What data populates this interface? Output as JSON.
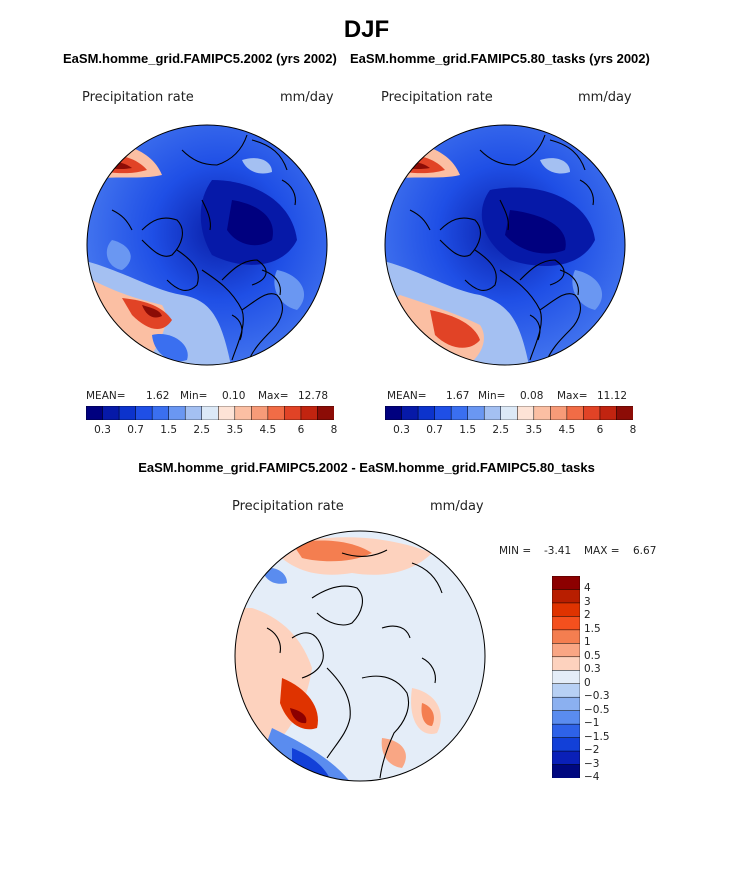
{
  "main_title": "DJF",
  "panels": [
    {
      "title": "EaSM.homme_grid.FAMIPC5.2002 (yrs 2002)",
      "variable": "Precipitation rate",
      "units": "mm/day",
      "mean_label": "MEAN=",
      "mean": "1.62",
      "min_label": "Min=",
      "min": "0.10",
      "max_label": "Max=",
      "max": "12.78"
    },
    {
      "title": "EaSM.homme_grid.FAMIPC5.80_tasks (yrs 2002)",
      "variable": "Precipitation rate",
      "units": "mm/day",
      "mean_label": "MEAN=",
      "mean": "1.67",
      "min_label": "Min=",
      "min": "0.08",
      "max_label": "Max=",
      "max": "11.12"
    }
  ],
  "diff_panel": {
    "title": "EaSM.homme_grid.FAMIPC5.2002 - EaSM.homme_grid.FAMIPC5.80_tasks",
    "variable": "Precipitation rate",
    "units": "mm/day",
    "min_label": "MIN =",
    "min": "-3.41",
    "max_label": "MAX =",
    "max": "6.67"
  },
  "chart_data": [
    {
      "type": "heatmap",
      "title": "EaSM.homme_grid.FAMIPC5.2002 (yrs 2002)",
      "projection": "north polar stereographic",
      "units": "mm/day",
      "stats": {
        "mean": 1.62,
        "min": 0.1,
        "max": 12.78
      },
      "contour_levels": [
        0.3,
        0.5,
        0.7,
        1,
        1.5,
        2,
        2.5,
        3,
        3.5,
        4,
        4.5,
        5,
        6,
        7,
        8
      ],
      "colorbar_tick_labels": [
        "0.3",
        "0.7",
        "1.5",
        "2.5",
        "3.5",
        "4.5",
        "6",
        "8"
      ]
    },
    {
      "type": "heatmap",
      "title": "EaSM.homme_grid.FAMIPC5.80_tasks (yrs 2002)",
      "projection": "north polar stereographic",
      "units": "mm/day",
      "stats": {
        "mean": 1.67,
        "min": 0.08,
        "max": 11.12
      },
      "contour_levels": [
        0.3,
        0.5,
        0.7,
        1,
        1.5,
        2,
        2.5,
        3,
        3.5,
        4,
        4.5,
        5,
        6,
        7,
        8
      ],
      "colorbar_tick_labels": [
        "0.3",
        "0.7",
        "1.5",
        "2.5",
        "3.5",
        "4.5",
        "6",
        "8"
      ]
    },
    {
      "type": "heatmap",
      "title": "EaSM.homme_grid.FAMIPC5.2002 - EaSM.homme_grid.FAMIPC5.80_tasks",
      "projection": "north polar stereographic",
      "units": "mm/day",
      "stats": {
        "min": -3.41,
        "max": 6.67
      },
      "contour_levels": [
        -4,
        -3,
        -2,
        -1.5,
        -1,
        -0.5,
        -0.3,
        0,
        0.3,
        0.5,
        1,
        1.5,
        2,
        3,
        4
      ],
      "colorbar_tick_labels": [
        "4",
        "3",
        "2",
        "1.5",
        "1",
        "0.5",
        "0.3",
        "0",
        "−0.3",
        "−0.5",
        "−1",
        "−1.5",
        "−2",
        "−3",
        "−4"
      ]
    }
  ],
  "colors": {
    "seq": [
      "#00007f",
      "#0619a8",
      "#0c33cc",
      "#1f4fe6",
      "#3a6ff0",
      "#6a97f2",
      "#a4c0f2",
      "#dce9f7",
      "#fde3d6",
      "#fbbfa3",
      "#f79b78",
      "#f16c46",
      "#e14326",
      "#c12410",
      "#8c0c06"
    ],
    "div": [
      "#8c0000",
      "#b81e00",
      "#df3300",
      "#f4501e",
      "#f47e50",
      "#f9a684",
      "#fdd2be",
      "#e4edf8",
      "#b7d0f4",
      "#8bb0f0",
      "#5a8cef",
      "#2e62e8",
      "#1240d8",
      "#0a20b8",
      "#00087f"
    ]
  }
}
